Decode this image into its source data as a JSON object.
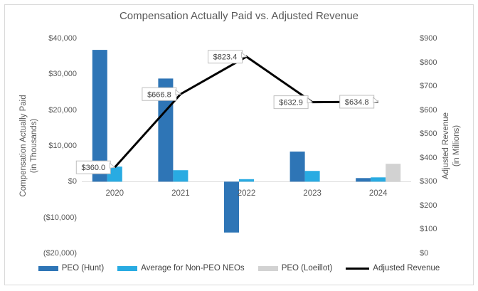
{
  "chart_data": {
    "type": "combo-bar-line",
    "title": "Compensation Actually Paid vs. Adjusted Revenue",
    "categories": [
      "2020",
      "2021",
      "2022",
      "2023",
      "2024"
    ],
    "bar_series": [
      {
        "name": "PEO (Hunt)",
        "color": "#2E75B6",
        "values": [
          36800,
          28800,
          -14200,
          8400,
          1000
        ]
      },
      {
        "name": "Average for Non-PEO NEOs",
        "color": "#29ABE2",
        "values": [
          4200,
          3200,
          700,
          3000,
          1200
        ]
      },
      {
        "name": "PEO (Loeillot)",
        "color": "#D2D2D2",
        "values": [
          0,
          0,
          0,
          0,
          5000
        ]
      }
    ],
    "line_series": {
      "name": "Adjusted Revenue",
      "color": "#000000",
      "values": [
        360.0,
        666.8,
        823.4,
        632.9,
        634.8
      ],
      "labels": [
        "$360.0",
        "$666.8",
        "$823.4",
        "$632.9",
        "$634.8"
      ]
    },
    "left_axis": {
      "title": [
        "Compensation Actually Paid",
        "(in Thousands)"
      ],
      "tick_labels": [
        "$40,000",
        "$30,000",
        "$20,000",
        "$10,000",
        "$0",
        "($10,000)",
        "($20,000)"
      ],
      "tick_values": [
        40000,
        30000,
        20000,
        10000,
        0,
        -10000,
        -20000
      ],
      "min": -20000,
      "max": 40000
    },
    "right_axis": {
      "title": [
        "Adjusted Revenue",
        "(in Millions)"
      ],
      "tick_labels": [
        "$900",
        "$800",
        "$700",
        "$600",
        "$500",
        "$400",
        "$300",
        "$200",
        "$100",
        "$0"
      ],
      "tick_values": [
        900,
        800,
        700,
        600,
        500,
        400,
        300,
        200,
        100,
        0
      ],
      "min": 0,
      "max": 900
    },
    "legend": [
      {
        "label": "PEO (Hunt)",
        "color": "#2E75B6",
        "marker": "bar"
      },
      {
        "label": "Average for Non-PEO NEOs",
        "color": "#29ABE2",
        "marker": "bar"
      },
      {
        "label": "PEO (Loeillot)",
        "color": "#D2D2D2",
        "marker": "bar"
      },
      {
        "label": "Adjusted Revenue",
        "color": "#000000",
        "marker": "line"
      }
    ],
    "colors": {
      "text": "#595959",
      "gridline": "#D9D9D9",
      "frame_border": "#D9D9D9",
      "label_border": "#BFBFBF",
      "label_text": "#404040",
      "background": "#FFFFFF"
    },
    "layout": {
      "grid": "zero-line-only",
      "legend_position": "bottom"
    }
  }
}
